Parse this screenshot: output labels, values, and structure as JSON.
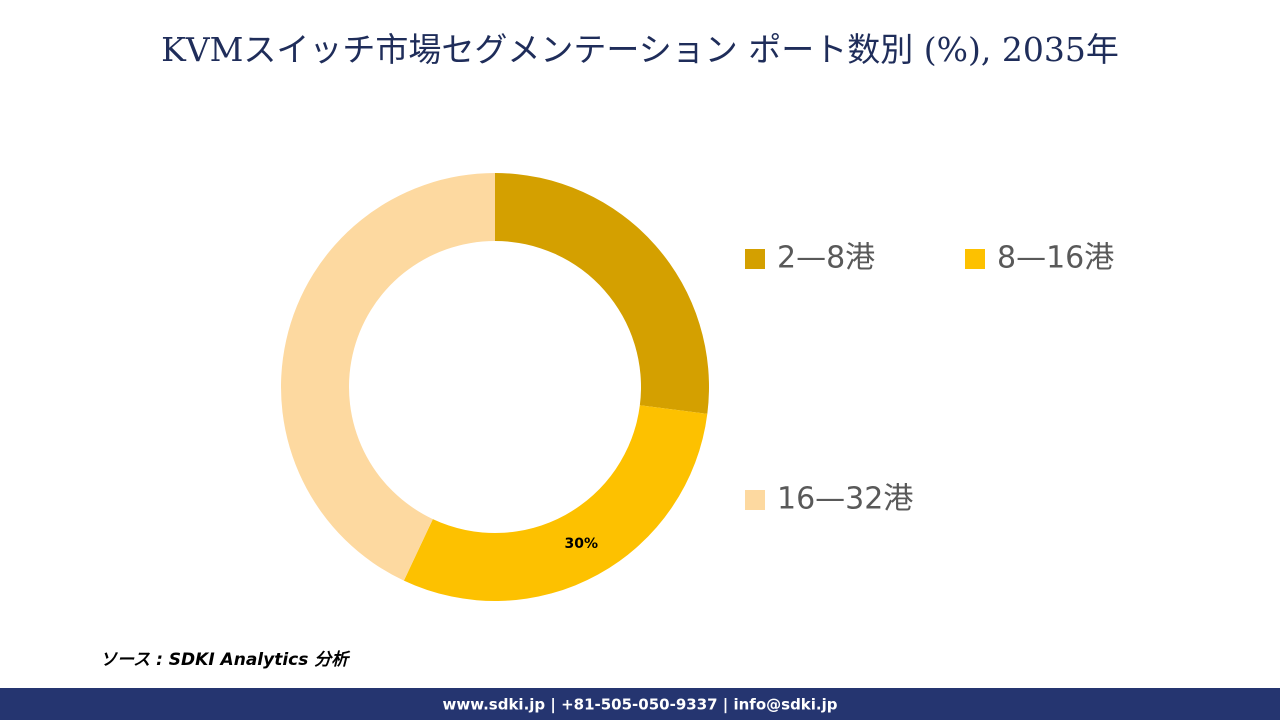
{
  "chart_data": {
    "type": "donut",
    "title": "KVMスイッチ市場セグメンテーション ポート数別 (%), 2035年",
    "categories": [
      "2—8港",
      "8—16港",
      "16—32港"
    ],
    "values": [
      27,
      30,
      43
    ],
    "value_labels": [
      null,
      "30%",
      null
    ],
    "colors": [
      "#d4a000",
      "#fdc100",
      "#fdd9a0"
    ]
  },
  "source": "ソース : SDKI Analytics 分析",
  "footer": "www.sdki.jp | +81-505-050-9337 | info@sdki.jp"
}
